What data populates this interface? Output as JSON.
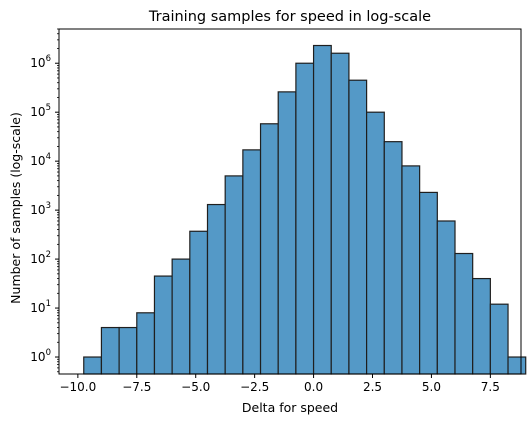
{
  "chart_data": {
    "type": "bar",
    "title": "Training samples for speed in log-scale",
    "xlabel": "Delta for speed",
    "ylabel": "Number of samples (log-scale)",
    "yscale": "log",
    "xlim": [
      -10.8,
      8.8
    ],
    "ylim": [
      0.45,
      5000000
    ],
    "grid": false,
    "legend": "none",
    "bar_color": "#5499c7",
    "edge_color": "#1f1f1f",
    "bin_width": 0.75,
    "x_tick_values": [
      -10.0,
      -7.5,
      -5.0,
      -2.5,
      0.0,
      2.5,
      5.0,
      7.5
    ],
    "x_tick_labels": [
      "−10.0",
      "−7.5",
      "−5.0",
      "−2.5",
      "0.0",
      "2.5",
      "5.0",
      "7.5"
    ],
    "y_tick_exponents": [
      0,
      1,
      2,
      3,
      4,
      5,
      6
    ],
    "y_tick_base": "10",
    "bins": [
      {
        "x0": -9.75,
        "count": 1
      },
      {
        "x0": -9.0,
        "count": 4
      },
      {
        "x0": -8.25,
        "count": 4
      },
      {
        "x0": -7.5,
        "count": 8
      },
      {
        "x0": -6.75,
        "count": 45
      },
      {
        "x0": -6.0,
        "count": 100
      },
      {
        "x0": -5.25,
        "count": 370
      },
      {
        "x0": -4.5,
        "count": 1300
      },
      {
        "x0": -3.75,
        "count": 5000
      },
      {
        "x0": -3.0,
        "count": 17000
      },
      {
        "x0": -2.25,
        "count": 58000
      },
      {
        "x0": -1.5,
        "count": 260000
      },
      {
        "x0": -0.75,
        "count": 1000000
      },
      {
        "x0": 0.0,
        "count": 2300000
      },
      {
        "x0": 0.75,
        "count": 1600000
      },
      {
        "x0": 1.5,
        "count": 450000
      },
      {
        "x0": 2.25,
        "count": 100000
      },
      {
        "x0": 3.0,
        "count": 25000
      },
      {
        "x0": 3.75,
        "count": 8000
      },
      {
        "x0": 4.5,
        "count": 2300
      },
      {
        "x0": 5.25,
        "count": 600
      },
      {
        "x0": 6.0,
        "count": 130
      },
      {
        "x0": 6.75,
        "count": 40
      },
      {
        "x0": 7.5,
        "count": 12
      },
      {
        "x0": 8.25,
        "count": 1
      }
    ]
  }
}
